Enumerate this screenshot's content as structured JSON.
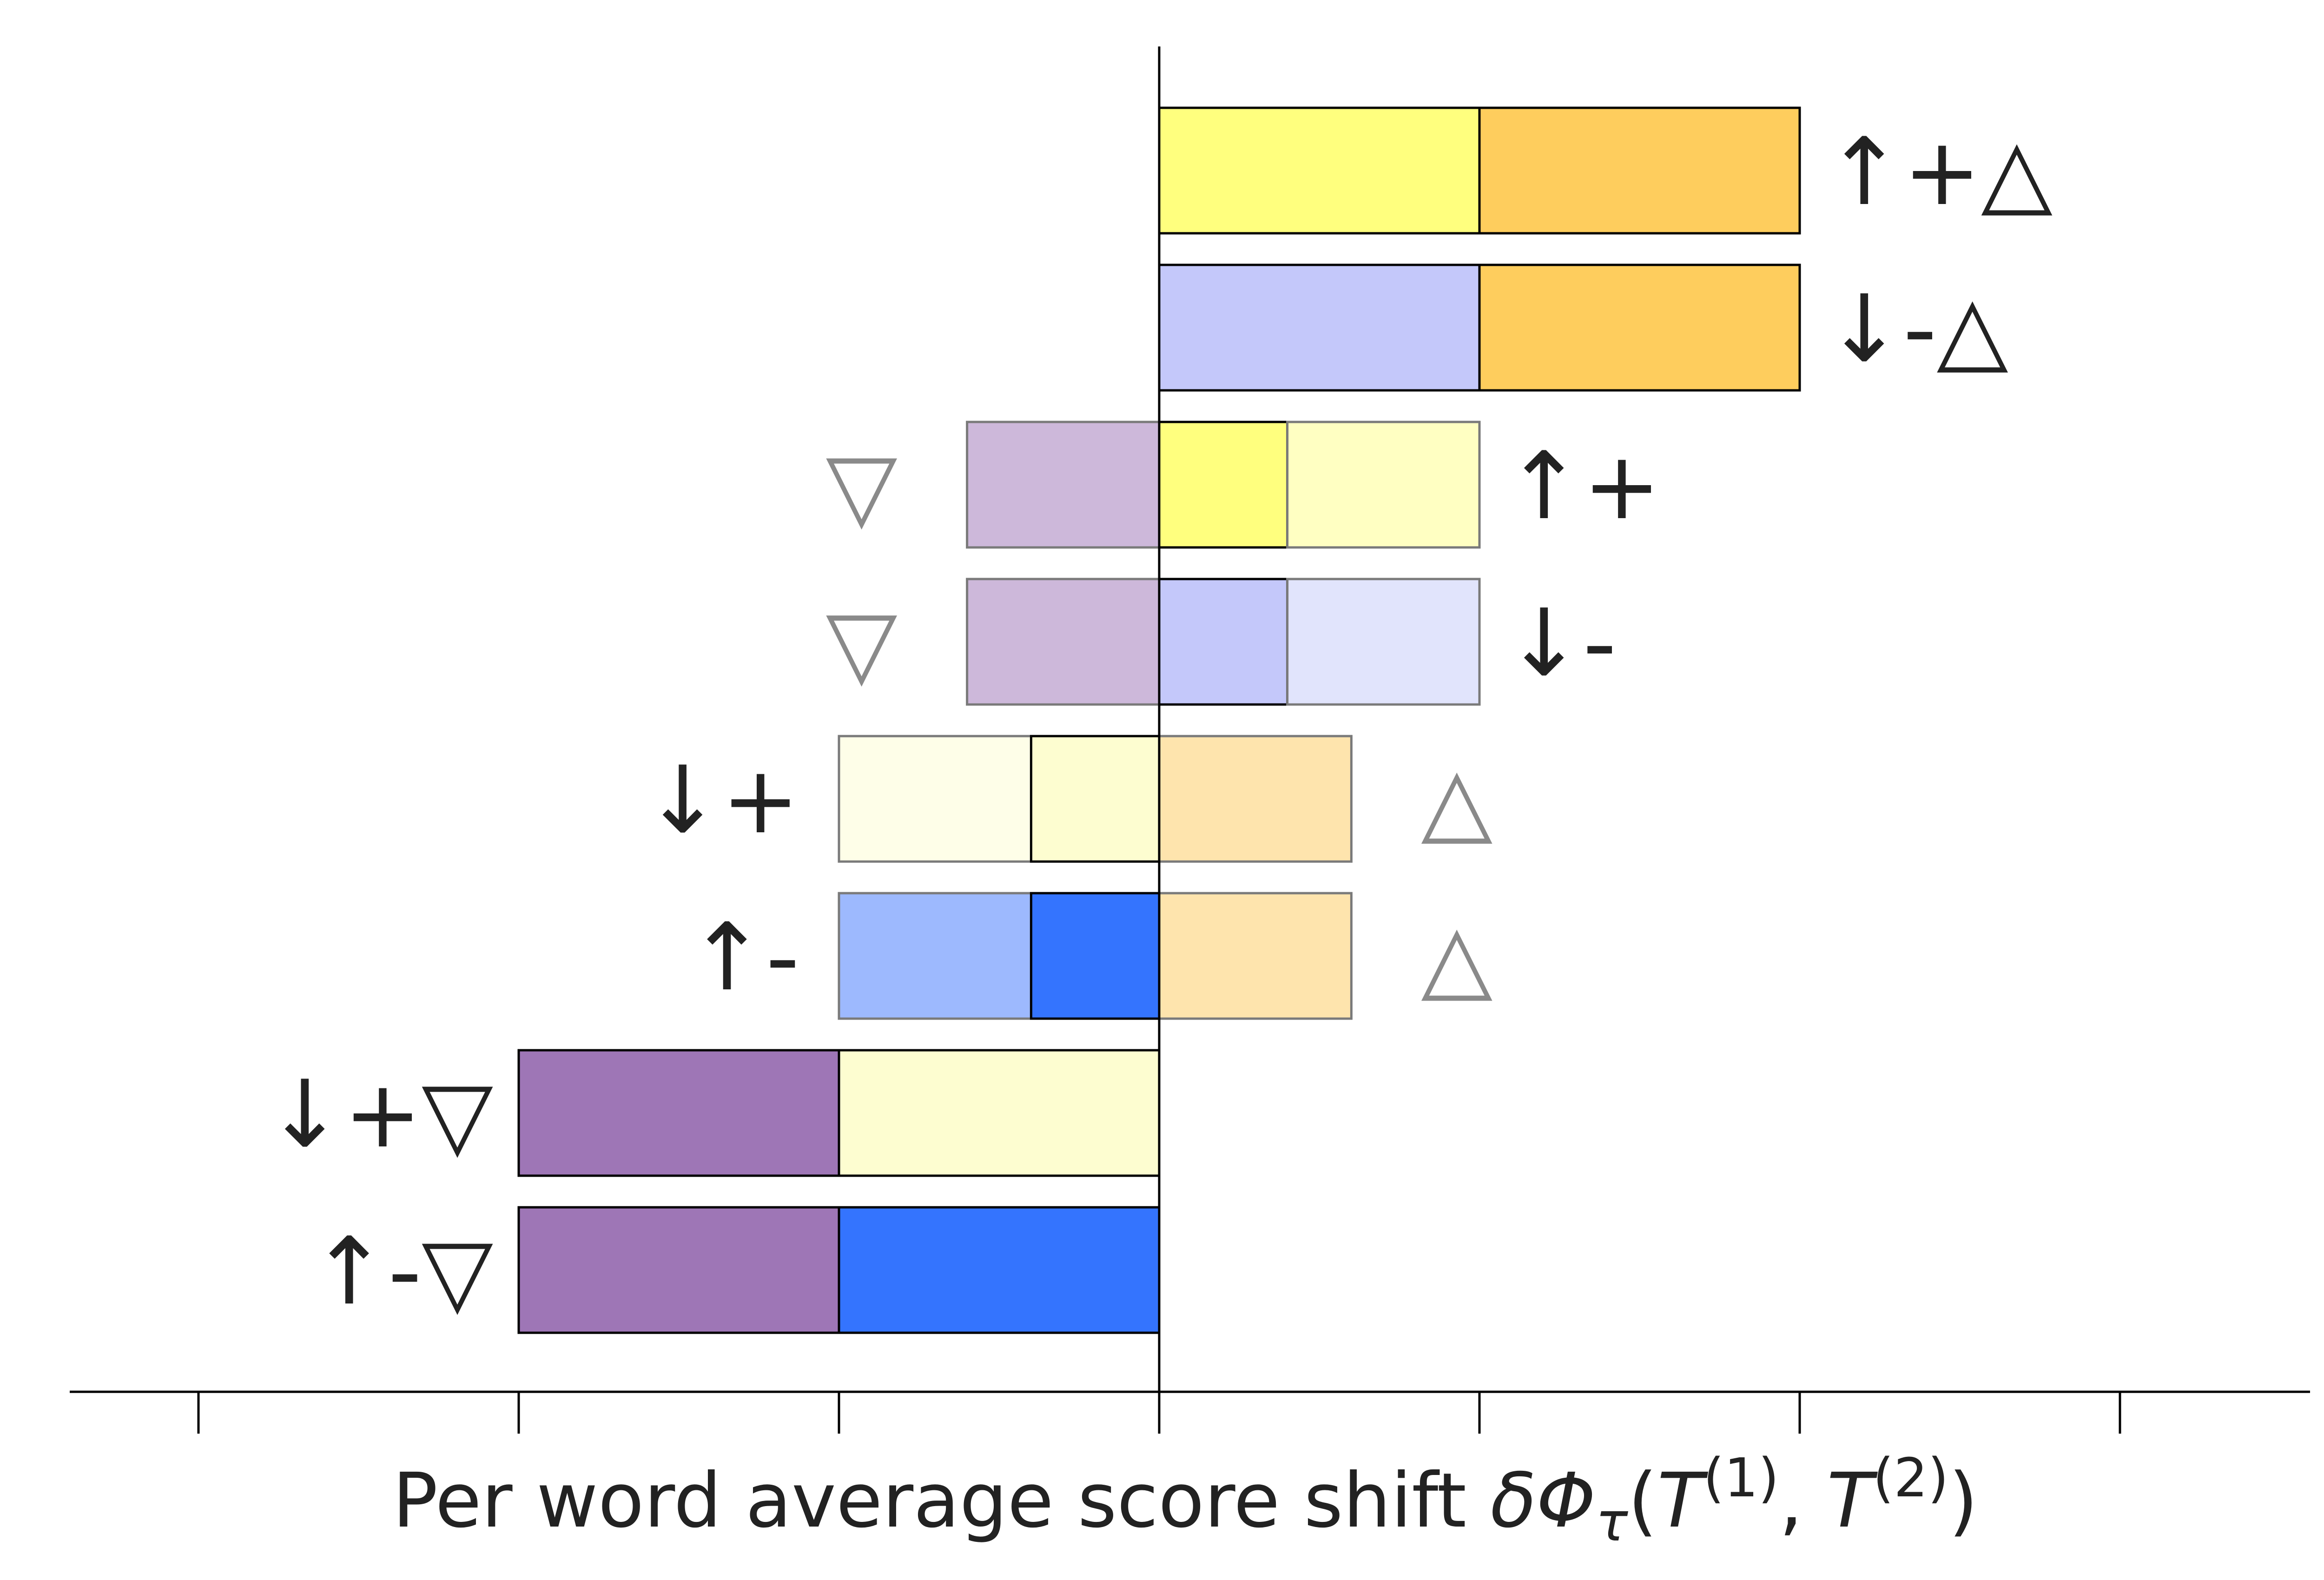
{
  "chart_data": {
    "type": "bar",
    "orientation": "horizontal",
    "stacked": true,
    "xlabel": "Per word average score shift δΦτ(T(1), T(2))",
    "xlabel_parts": {
      "text": "Per word average score shift ",
      "delta": "δΦ",
      "sub": "τ",
      "open": "(",
      "T1": "T",
      "sup1": "(1)",
      "comma": ", ",
      "T2": "T",
      "sup2": "(2)",
      "close": ")"
    },
    "xlim": [
      -3.0,
      3.6
    ],
    "xticks": [
      -3,
      -2,
      -1,
      0,
      1,
      2,
      3
    ],
    "tick_labels_shown": false,
    "grid": false,
    "zero_line": true,
    "rows": [
      {
        "label": "↑+△",
        "label_side": "right",
        "label_color": "#222222",
        "segments": [
          {
            "start": 0,
            "end": 1,
            "color": "#FFFF7E",
            "faded": false
          },
          {
            "start": 1,
            "end": 2,
            "color": "#FECD5D",
            "faded": false
          }
        ]
      },
      {
        "label": "↓-△",
        "label_side": "right",
        "label_color": "#222222",
        "segments": [
          {
            "start": 0,
            "end": 1,
            "color": "#C4C8FA",
            "faded": false
          },
          {
            "start": 1,
            "end": 2,
            "color": "#FECD5D",
            "faded": false
          }
        ]
      },
      {
        "label": "↑+",
        "label_side": "right",
        "label_color": "#222222",
        "extra_label": "▽",
        "extra_side": "left",
        "extra_color": "#8a8a8a",
        "segments": [
          {
            "start": -0.6,
            "end": 0,
            "color": "#CDB8DA",
            "faded": true
          },
          {
            "start": 0,
            "end": 0.4,
            "color": "#FFFF7E",
            "faded": false
          },
          {
            "start": 0.4,
            "end": 1,
            "color": "#FFFFC2",
            "faded": true
          }
        ]
      },
      {
        "label": "↓-",
        "label_side": "right",
        "label_color": "#222222",
        "extra_label": "▽",
        "extra_side": "left",
        "extra_color": "#8a8a8a",
        "segments": [
          {
            "start": -0.6,
            "end": 0,
            "color": "#CDB8DA",
            "faded": true
          },
          {
            "start": 0,
            "end": 0.4,
            "color": "#C4C8FA",
            "faded": false
          },
          {
            "start": 0.4,
            "end": 1,
            "color": "#E1E4FC",
            "faded": true
          }
        ]
      },
      {
        "label": "↓+",
        "label_side": "left",
        "label_color": "#222222",
        "extra_label": "△",
        "extra_side": "right",
        "extra_color": "#8a8a8a",
        "segments": [
          {
            "start": -1,
            "end": -0.4,
            "color": "#FEFEE8",
            "faded": true
          },
          {
            "start": -0.4,
            "end": 0,
            "color": "#FDFDD0",
            "faded": false
          },
          {
            "start": 0,
            "end": 0.6,
            "color": "#FEE4AD",
            "faded": true
          }
        ]
      },
      {
        "label": "↑-",
        "label_side": "left",
        "label_color": "#222222",
        "extra_label": "△",
        "extra_side": "right",
        "extra_color": "#8a8a8a",
        "segments": [
          {
            "start": -1,
            "end": -0.4,
            "color": "#9DB9FE",
            "faded": true
          },
          {
            "start": -0.4,
            "end": 0,
            "color": "#3474FE",
            "faded": false
          },
          {
            "start": 0,
            "end": 0.6,
            "color": "#FEE4AD",
            "faded": true
          }
        ]
      },
      {
        "label": "↓+▽",
        "label_side": "left",
        "label_color": "#222222",
        "segments": [
          {
            "start": -2,
            "end": -1,
            "color": "#9E76B6",
            "faded": false
          },
          {
            "start": -1,
            "end": 0,
            "color": "#FDFDD0",
            "faded": false
          }
        ]
      },
      {
        "label": "↑-▽",
        "label_side": "left",
        "label_color": "#222222",
        "segments": [
          {
            "start": -2,
            "end": -1,
            "color": "#9E76B6",
            "faded": false
          },
          {
            "start": -1,
            "end": 0,
            "color": "#3474FE",
            "faded": false
          }
        ]
      }
    ]
  }
}
